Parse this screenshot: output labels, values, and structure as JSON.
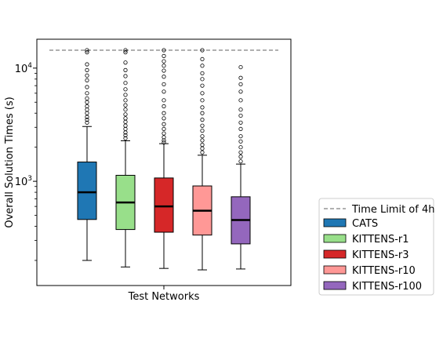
{
  "chart_data": {
    "type": "box",
    "xlabel": "Test Networks",
    "ylabel": "Overall Solution Times (s)",
    "yscale": "log",
    "ylim": [
      120,
      18000
    ],
    "yticks": [
      {
        "value": 1000,
        "base": "10",
        "exp": "3"
      },
      {
        "value": 10000,
        "base": "10",
        "exp": "4"
      }
    ],
    "time_limit": {
      "value": 14400,
      "label": "Time Limit of 4h",
      "color": "#808080"
    },
    "legend_position": "outside-right",
    "series": [
      {
        "name": "CATS",
        "color": "#1f77b4",
        "whisker_low": 200,
        "q1": 460,
        "median": 800,
        "q3": 1480,
        "whisker_high": 3050,
        "outliers": [
          3300,
          3500,
          3700,
          4000,
          4300,
          4600,
          5000,
          5400,
          6000,
          6800,
          7800,
          8600,
          9600,
          10800,
          13800,
          14400
        ]
      },
      {
        "name": "KITTENS-r1",
        "color": "#98df8a",
        "whisker_low": 175,
        "q1": 375,
        "median": 650,
        "q3": 1130,
        "whisker_high": 2280,
        "outliers": [
          2400,
          2550,
          2700,
          2900,
          3100,
          3350,
          3600,
          3900,
          4300,
          4700,
          5200,
          5800,
          6500,
          7400,
          8500,
          9600,
          11200,
          13800,
          14400
        ]
      },
      {
        "name": "KITTENS-r3",
        "color": "#d62728",
        "whisker_low": 170,
        "q1": 355,
        "median": 600,
        "q3": 1070,
        "whisker_high": 2150,
        "outliers": [
          2200,
          2300,
          2450,
          2650,
          2900,
          3200,
          3600,
          4000,
          4600,
          5200,
          6200,
          7200,
          8400,
          9500,
          10500,
          11500,
          12800,
          14400
        ]
      },
      {
        "name": "KITTENS-r10",
        "color": "#ff9896",
        "whisker_low": 165,
        "q1": 335,
        "median": 550,
        "q3": 910,
        "whisker_high": 1700,
        "outliers": [
          1800,
          1950,
          2100,
          2300,
          2500,
          2800,
          3100,
          3500,
          4000,
          4500,
          5200,
          6000,
          7000,
          8000,
          9000,
          10500,
          12000,
          14400
        ]
      },
      {
        "name": "KITTENS-r100",
        "color": "#9467bd",
        "whisker_low": 168,
        "q1": 280,
        "median": 455,
        "q3": 730,
        "whisker_high": 1420,
        "outliers": [
          1500,
          1650,
          1800,
          2000,
          2250,
          2500,
          2900,
          3300,
          3800,
          4300,
          5200,
          6200,
          7200,
          8200,
          10200
        ]
      }
    ]
  }
}
